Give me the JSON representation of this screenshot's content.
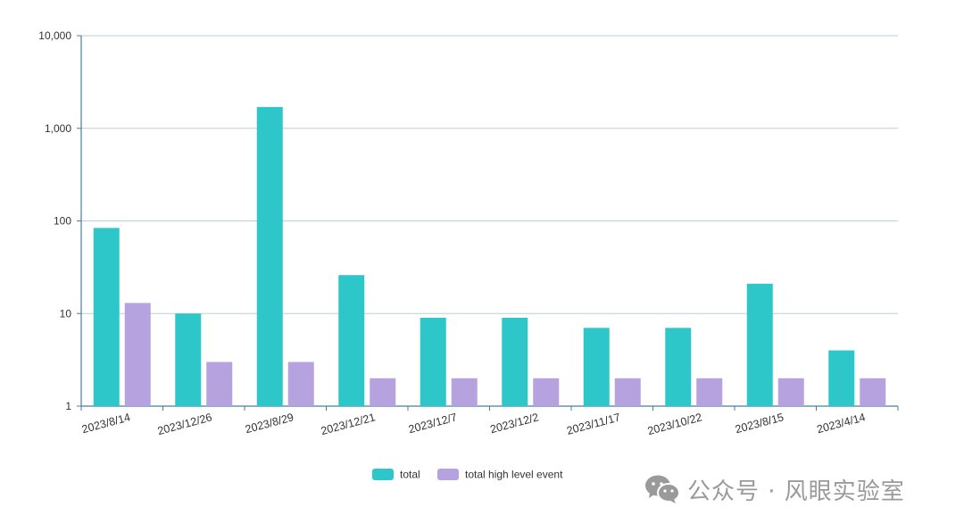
{
  "chart_data": {
    "type": "bar",
    "scale": "log",
    "categories": [
      "2023/8/14",
      "2023/12/26",
      "2023/8/29",
      "2023/12/21",
      "2023/12/7",
      "2023/12/2",
      "2023/11/17",
      "2023/10/22",
      "2023/8/15",
      "2023/4/14"
    ],
    "series": [
      {
        "name": "total",
        "color": "#2ec7c9",
        "values": [
          84,
          10,
          1700,
          26,
          9,
          9,
          7,
          7,
          21,
          4
        ]
      },
      {
        "name": "total high level event",
        "color": "#b6a2de",
        "values": [
          13,
          3,
          3,
          2,
          2,
          2,
          2,
          2,
          2,
          2
        ]
      }
    ],
    "ylim": [
      1,
      10000
    ],
    "yticks": [
      1,
      10,
      100,
      1000,
      10000
    ],
    "ytick_labels": [
      "1",
      "10",
      "100",
      "1,000",
      "10,000"
    ],
    "grid": true,
    "legend_position": "bottom-center",
    "title": "",
    "xlabel": "",
    "ylabel": ""
  },
  "watermark": {
    "text": "公众号 · 风眼实验室",
    "icon": "wechat-icon"
  }
}
